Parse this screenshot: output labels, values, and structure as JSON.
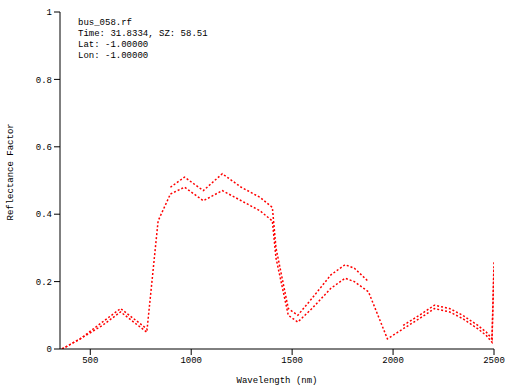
{
  "chart_data": {
    "type": "line",
    "annotations": [
      "bus_058.rf",
      "Time: 31.8334, SZ: 58.51",
      "Lat: -1.00000",
      "Lon: -1.00000"
    ],
    "x_label": "Wavelength (nm)",
    "y_label": "Reflectance Factor",
    "x": [
      360,
      450,
      560,
      650,
      780,
      836,
      897,
      967,
      1060,
      1154,
      1248,
      1341,
      1402,
      1420,
      1481,
      1528,
      1598,
      1692,
      1762,
      1808,
      1878,
      1972,
      2050,
      2130,
      2205,
      2280,
      2345,
      2420,
      2462,
      2490,
      2500
    ],
    "series": [
      {
        "color": "#ff0000",
        "line_style": "dotted",
        "values": [
          0.0,
          0.03,
          0.08,
          0.12,
          0.06,
          null,
          0.48,
          0.51,
          0.47,
          0.52,
          0.48,
          0.45,
          0.42,
          0.3,
          0.12,
          0.1,
          0.15,
          0.22,
          0.25,
          0.24,
          0.2,
          null,
          0.07,
          0.1,
          0.13,
          0.12,
          0.1,
          0.07,
          0.05,
          0.03,
          0.26
        ]
      },
      {
        "color": "#ff0000",
        "line_style": "dotted",
        "values": [
          0.0,
          0.03,
          0.07,
          0.11,
          0.05,
          0.38,
          0.46,
          0.48,
          0.44,
          0.47,
          0.44,
          0.41,
          0.38,
          0.27,
          0.1,
          0.08,
          0.12,
          0.18,
          0.21,
          0.2,
          0.17,
          0.03,
          0.06,
          0.09,
          0.12,
          0.11,
          0.09,
          0.06,
          0.04,
          0.02,
          0.24
        ]
      }
    ],
    "xlim": [
      350,
      2500
    ],
    "xticks": [
      500,
      1000,
      1500,
      2000,
      2500
    ],
    "ylim": [
      0,
      1
    ],
    "yticks": [
      0,
      0.2,
      0.4,
      0.6,
      0.8,
      1
    ],
    "grid": false
  }
}
